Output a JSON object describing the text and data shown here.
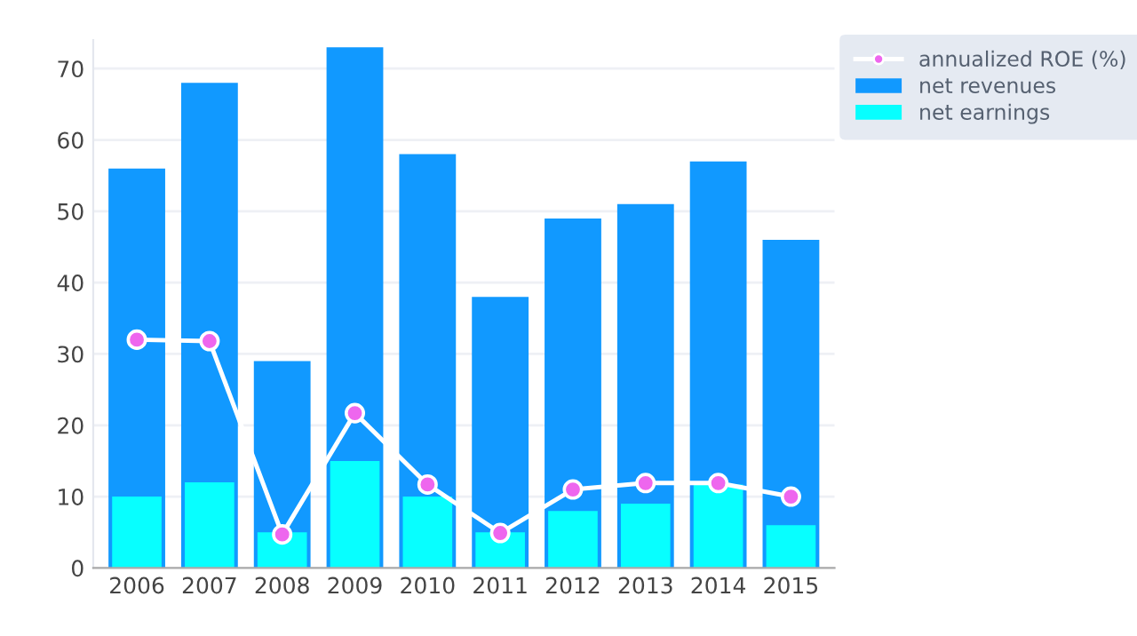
{
  "chart_data": {
    "type": "bar",
    "categories": [
      "2006",
      "2007",
      "2008",
      "2009",
      "2010",
      "2011",
      "2012",
      "2013",
      "2014",
      "2015"
    ],
    "series": [
      {
        "name": "annualized ROE (%)",
        "type": "line",
        "color": "#ffffff",
        "marker": "circle",
        "values": [
          32,
          31.8,
          4.7,
          21.7,
          11.7,
          4.9,
          11,
          11.9,
          11.9,
          10
        ]
      },
      {
        "name": "net revenues",
        "color": "#1199ff",
        "values": [
          56,
          68,
          29,
          73,
          58,
          38,
          49,
          51,
          57,
          46
        ]
      },
      {
        "name": "net earnings",
        "color": "#07ffff",
        "values": [
          10,
          12,
          5,
          15,
          10,
          5,
          8,
          9,
          11.7,
          6
        ]
      }
    ],
    "ylim": [
      0,
      74
    ],
    "yticks": [
      0,
      10,
      20,
      30,
      40,
      50,
      60,
      70
    ],
    "grid": "y",
    "legend": "top right"
  }
}
